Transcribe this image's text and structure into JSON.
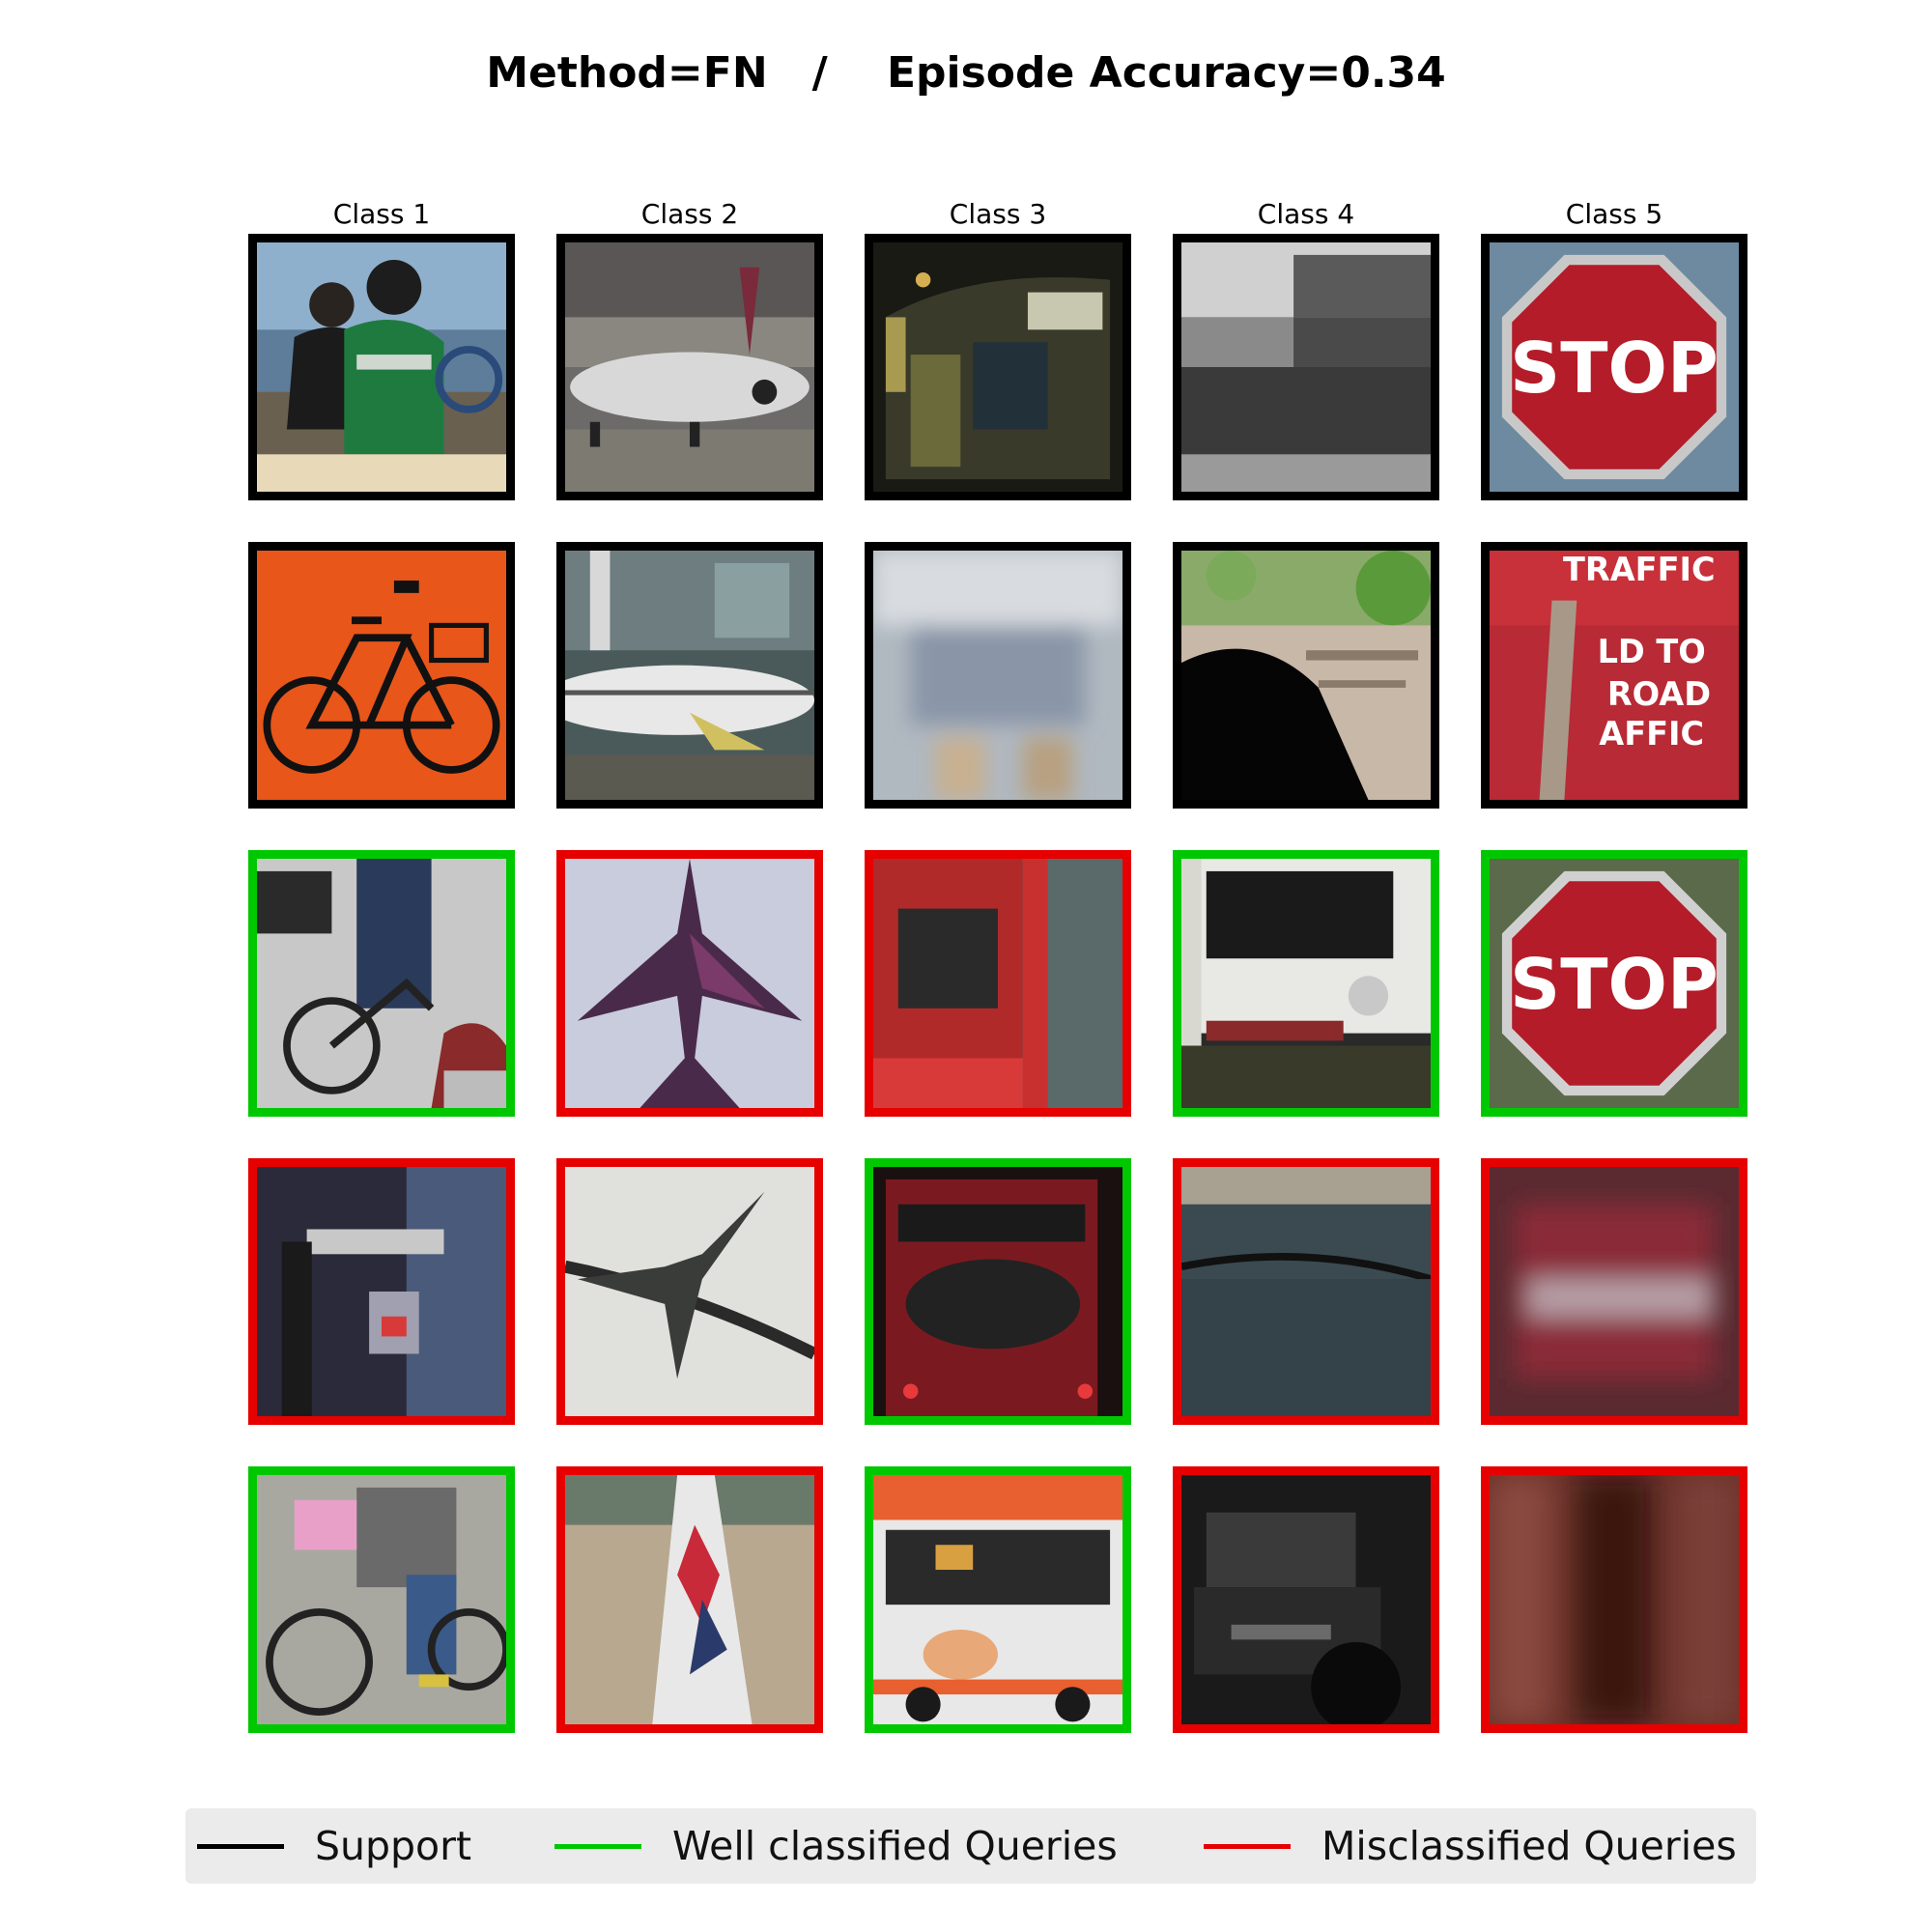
{
  "title": "Method=FN   /    Episode Accuracy=0.34",
  "columns": [
    "Class 1",
    "Class 2",
    "Class 3",
    "Class 4",
    "Class 5"
  ],
  "colors": {
    "support": "#000000",
    "well": "#00c800",
    "mis": "#e60000"
  },
  "grid": [
    [
      "support",
      "support",
      "support",
      "support",
      "support"
    ],
    [
      "support",
      "support",
      "support",
      "support",
      "support"
    ],
    [
      "well",
      "mis",
      "mis",
      "well",
      "well"
    ],
    [
      "mis",
      "mis",
      "well",
      "mis",
      "mis"
    ],
    [
      "well",
      "mis",
      "well",
      "mis",
      "mis"
    ]
  ],
  "images": {
    "r0c4": "STOP",
    "r1c4": [
      "TRAFFIC",
      "LD TO",
      "ROAD",
      "AFFIC"
    ],
    "r2c4": "STOP"
  },
  "legend": {
    "support": "Support",
    "well": "Well classified Queries",
    "mis": "Misclassified Queries"
  }
}
